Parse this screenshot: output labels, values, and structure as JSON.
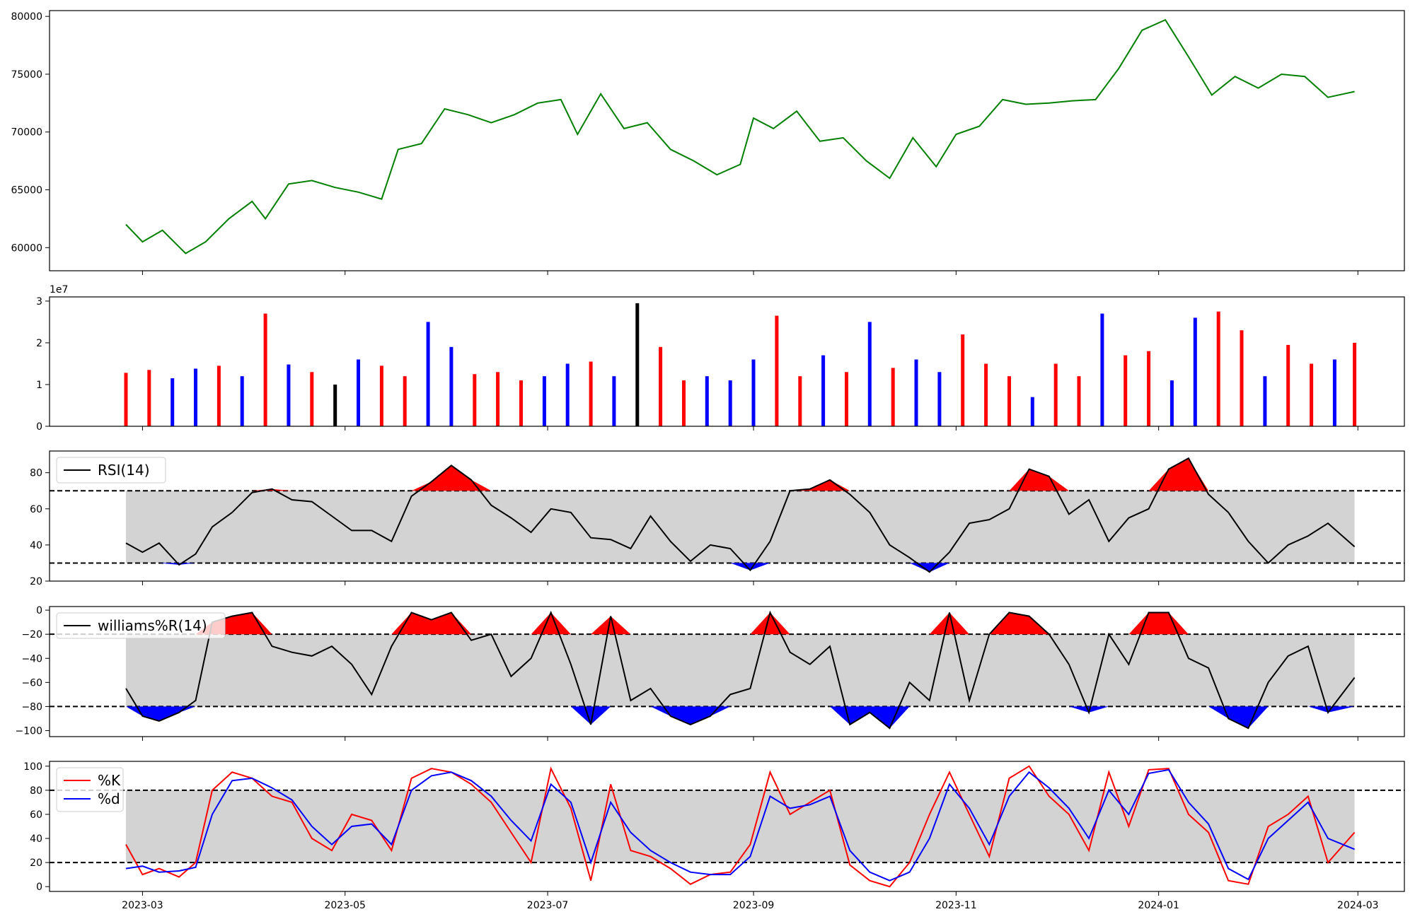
{
  "colors": {
    "price": "#008000",
    "volume_up": "#ff0000",
    "volume_down": "#0000ff",
    "volume_flat": "#000000",
    "band_fill": "#d3d3d3",
    "overbought_fill": "#ff0000",
    "oversold_fill": "#0000ff",
    "indicator_line": "#000000",
    "stoch_k": "#ff0000",
    "stoch_d": "#0000ff"
  },
  "x_axis": {
    "domain": [
      "2023-02-01",
      "2024-03-15"
    ],
    "ticks": [
      "2023-03-01",
      "2023-05-01",
      "2023-07-01",
      "2023-09-01",
      "2023-11-01",
      "2024-01-01",
      "2024-03-01"
    ],
    "tick_labels": [
      "2023-03",
      "2023-05",
      "2023-07",
      "2023-09",
      "2023-11",
      "2024-01",
      "2024-03"
    ]
  },
  "chart_data": [
    {
      "type": "line",
      "panel": "price",
      "ylim": [
        58000,
        80500
      ],
      "yticks": [
        60000,
        65000,
        70000,
        75000,
        80000
      ],
      "ytick_labels": [
        "60000",
        "65000",
        "70000",
        "75000",
        "80000"
      ],
      "x": [
        "2023-02-24",
        "2023-03-01",
        "2023-03-07",
        "2023-03-14",
        "2023-03-20",
        "2023-03-27",
        "2023-04-03",
        "2023-04-07",
        "2023-04-14",
        "2023-04-21",
        "2023-04-28",
        "2023-05-05",
        "2023-05-12",
        "2023-05-17",
        "2023-05-24",
        "2023-05-31",
        "2023-06-07",
        "2023-06-14",
        "2023-06-21",
        "2023-06-28",
        "2023-07-05",
        "2023-07-10",
        "2023-07-17",
        "2023-07-24",
        "2023-07-31",
        "2023-08-07",
        "2023-08-14",
        "2023-08-21",
        "2023-08-28",
        "2023-09-01",
        "2023-09-07",
        "2023-09-14",
        "2023-09-21",
        "2023-09-28",
        "2023-10-05",
        "2023-10-12",
        "2023-10-19",
        "2023-10-26",
        "2023-11-01",
        "2023-11-08",
        "2023-11-15",
        "2023-11-22",
        "2023-11-29",
        "2023-12-06",
        "2023-12-13",
        "2023-12-20",
        "2023-12-27",
        "2024-01-03",
        "2024-01-10",
        "2024-01-17",
        "2024-01-24",
        "2024-01-31",
        "2024-02-07",
        "2024-02-14",
        "2024-02-21",
        "2024-02-29"
      ],
      "values": [
        62000,
        60500,
        61500,
        59500,
        60500,
        62500,
        64000,
        62500,
        65500,
        65800,
        65200,
        64800,
        64200,
        68500,
        69000,
        72000,
        71500,
        70800,
        71500,
        72500,
        72800,
        69800,
        73300,
        70300,
        70800,
        68500,
        67500,
        66300,
        67200,
        71200,
        70300,
        71800,
        69200,
        69500,
        67500,
        66000,
        69500,
        67000,
        69800,
        70500,
        72800,
        72400,
        72500,
        72700,
        72800,
        75500,
        78800,
        79700,
        76500,
        73200,
        74800,
        73800,
        75000,
        74800,
        73000,
        73500
      ]
    },
    {
      "type": "bar",
      "panel": "volume",
      "scale_label": "1e7",
      "ylim": [
        0,
        3.1
      ],
      "yticks": [
        0,
        1,
        2,
        3
      ],
      "ytick_labels": [
        "0",
        "1",
        "2",
        "3"
      ],
      "x": [
        "2023-02-24",
        "2023-03-03",
        "2023-03-10",
        "2023-03-17",
        "2023-03-24",
        "2023-03-31",
        "2023-04-07",
        "2023-04-14",
        "2023-04-21",
        "2023-04-28",
        "2023-05-05",
        "2023-05-12",
        "2023-05-19",
        "2023-05-26",
        "2023-06-02",
        "2023-06-09",
        "2023-06-16",
        "2023-06-23",
        "2023-06-30",
        "2023-07-07",
        "2023-07-14",
        "2023-07-21",
        "2023-07-28",
        "2023-08-04",
        "2023-08-11",
        "2023-08-18",
        "2023-08-25",
        "2023-09-01",
        "2023-09-08",
        "2023-09-15",
        "2023-09-22",
        "2023-09-29",
        "2023-10-06",
        "2023-10-13",
        "2023-10-20",
        "2023-10-27",
        "2023-11-03",
        "2023-11-10",
        "2023-11-17",
        "2023-11-24",
        "2023-12-01",
        "2023-12-08",
        "2023-12-15",
        "2023-12-22",
        "2023-12-29",
        "2024-01-05",
        "2024-01-12",
        "2024-01-19",
        "2024-01-26",
        "2024-02-02",
        "2024-02-09",
        "2024-02-16",
        "2024-02-23",
        "2024-02-29"
      ],
      "values": [
        1.28,
        1.35,
        1.15,
        1.38,
        1.45,
        1.2,
        2.7,
        1.48,
        1.3,
        1.0,
        1.6,
        1.45,
        1.2,
        2.5,
        1.9,
        1.25,
        1.3,
        1.1,
        1.2,
        1.5,
        1.55,
        1.2,
        2.95,
        1.9,
        1.1,
        1.2,
        1.1,
        1.6,
        2.65,
        1.2,
        1.7,
        1.3,
        2.5,
        1.4,
        1.6,
        1.3,
        2.2,
        1.5,
        1.2,
        0.7,
        1.5,
        1.2,
        2.7,
        1.7,
        1.8,
        1.1,
        2.6,
        2.75,
        2.3,
        1.2,
        1.95,
        1.5,
        1.6,
        2.0
      ],
      "colors": [
        "up",
        "up",
        "down",
        "down",
        "up",
        "down",
        "up",
        "down",
        "up",
        "flat",
        "down",
        "up",
        "up",
        "down",
        "down",
        "up",
        "up",
        "up",
        "down",
        "down",
        "up",
        "down",
        "flat",
        "up",
        "up",
        "down",
        "down",
        "down",
        "up",
        "up",
        "down",
        "up",
        "down",
        "up",
        "down",
        "down",
        "up",
        "up",
        "up",
        "down",
        "up",
        "up",
        "down",
        "up",
        "up",
        "down",
        "down",
        "up",
        "up",
        "down",
        "up",
        "up",
        "down",
        "up"
      ]
    },
    {
      "type": "line",
      "panel": "rsi",
      "legend": [
        "RSI(14)"
      ],
      "ylim": [
        20,
        92
      ],
      "yticks": [
        20,
        40,
        60,
        80
      ],
      "ytick_labels": [
        "20",
        "40",
        "60",
        "80"
      ],
      "band": [
        30,
        70
      ],
      "x": [
        "2023-02-24",
        "2023-03-01",
        "2023-03-06",
        "2023-03-12",
        "2023-03-17",
        "2023-03-22",
        "2023-03-28",
        "2023-04-03",
        "2023-04-09",
        "2023-04-15",
        "2023-04-21",
        "2023-04-27",
        "2023-05-03",
        "2023-05-09",
        "2023-05-15",
        "2023-05-21",
        "2023-05-27",
        "2023-06-02",
        "2023-06-08",
        "2023-06-14",
        "2023-06-20",
        "2023-06-26",
        "2023-07-02",
        "2023-07-08",
        "2023-07-14",
        "2023-07-20",
        "2023-07-26",
        "2023-08-01",
        "2023-08-07",
        "2023-08-13",
        "2023-08-19",
        "2023-08-25",
        "2023-08-31",
        "2023-09-06",
        "2023-09-12",
        "2023-09-18",
        "2023-09-24",
        "2023-09-30",
        "2023-10-06",
        "2023-10-12",
        "2023-10-18",
        "2023-10-24",
        "2023-10-30",
        "2023-11-05",
        "2023-11-11",
        "2023-11-17",
        "2023-11-23",
        "2023-11-29",
        "2023-12-05",
        "2023-12-11",
        "2023-12-17",
        "2023-12-23",
        "2023-12-29",
        "2024-01-04",
        "2024-01-10",
        "2024-01-16",
        "2024-01-22",
        "2024-01-28",
        "2024-02-03",
        "2024-02-09",
        "2024-02-15",
        "2024-02-21",
        "2024-02-29"
      ],
      "values": [
        41,
        36,
        41,
        29,
        35,
        50,
        58,
        69,
        71,
        65,
        64,
        56,
        48,
        48,
        42,
        67,
        75,
        84,
        76,
        62,
        55,
        47,
        60,
        58,
        44,
        43,
        38,
        56,
        42,
        31,
        40,
        38,
        26,
        42,
        70,
        71,
        76,
        68,
        58,
        40,
        33,
        25,
        36,
        52,
        54,
        60,
        82,
        78,
        57,
        65,
        42,
        55,
        60,
        82,
        88,
        68,
        58,
        42,
        30,
        40,
        45,
        52,
        39
      ]
    },
    {
      "type": "line",
      "panel": "williams",
      "legend": [
        "williams%R(14)"
      ],
      "ylim": [
        -105,
        3
      ],
      "yticks": [
        -100,
        -80,
        -60,
        -40,
        -20,
        0
      ],
      "ytick_labels": [
        "−100",
        "−80",
        "−60",
        "−40",
        "−20",
        "0"
      ],
      "band": [
        -80,
        -20
      ],
      "x": [
        "2023-02-24",
        "2023-03-01",
        "2023-03-06",
        "2023-03-12",
        "2023-03-17",
        "2023-03-22",
        "2023-03-28",
        "2023-04-03",
        "2023-04-09",
        "2023-04-15",
        "2023-04-21",
        "2023-04-27",
        "2023-05-03",
        "2023-05-09",
        "2023-05-15",
        "2023-05-21",
        "2023-05-27",
        "2023-06-02",
        "2023-06-08",
        "2023-06-14",
        "2023-06-20",
        "2023-06-26",
        "2023-07-02",
        "2023-07-08",
        "2023-07-14",
        "2023-07-20",
        "2023-07-26",
        "2023-08-01",
        "2023-08-07",
        "2023-08-13",
        "2023-08-19",
        "2023-08-25",
        "2023-08-31",
        "2023-09-06",
        "2023-09-12",
        "2023-09-18",
        "2023-09-24",
        "2023-09-30",
        "2023-10-06",
        "2023-10-12",
        "2023-10-18",
        "2023-10-24",
        "2023-10-30",
        "2023-11-05",
        "2023-11-11",
        "2023-11-17",
        "2023-11-23",
        "2023-11-29",
        "2023-12-05",
        "2023-12-11",
        "2023-12-17",
        "2023-12-23",
        "2023-12-29",
        "2024-01-04",
        "2024-01-10",
        "2024-01-16",
        "2024-01-22",
        "2024-01-28",
        "2024-02-03",
        "2024-02-09",
        "2024-02-15",
        "2024-02-21",
        "2024-02-29"
      ],
      "values": [
        -65,
        -88,
        -92,
        -85,
        -75,
        -10,
        -5,
        -2,
        -30,
        -35,
        -38,
        -30,
        -45,
        -70,
        -30,
        -2,
        -8,
        -2,
        -25,
        -20,
        -55,
        -40,
        -2,
        -45,
        -95,
        -5,
        -75,
        -65,
        -88,
        -95,
        -88,
        -70,
        -65,
        -2,
        -35,
        -45,
        -30,
        -95,
        -85,
        -98,
        -60,
        -75,
        -2,
        -75,
        -20,
        -2,
        -5,
        -20,
        -45,
        -85,
        -20,
        -45,
        -2,
        -2,
        -40,
        -48,
        -90,
        -98,
        -60,
        -38,
        -30,
        -85,
        -56
      ]
    },
    {
      "type": "line",
      "panel": "stochastic",
      "legend": [
        "%K",
        "%d"
      ],
      "ylim": [
        -4,
        104
      ],
      "yticks": [
        0,
        20,
        40,
        60,
        80,
        100
      ],
      "ytick_labels": [
        "0",
        "20",
        "40",
        "60",
        "80",
        "100"
      ],
      "band": [
        20,
        80
      ],
      "x": [
        "2023-02-24",
        "2023-03-01",
        "2023-03-06",
        "2023-03-12",
        "2023-03-17",
        "2023-03-22",
        "2023-03-28",
        "2023-04-03",
        "2023-04-09",
        "2023-04-15",
        "2023-04-21",
        "2023-04-27",
        "2023-05-03",
        "2023-05-09",
        "2023-05-15",
        "2023-05-21",
        "2023-05-27",
        "2023-06-02",
        "2023-06-08",
        "2023-06-14",
        "2023-06-20",
        "2023-06-26",
        "2023-07-02",
        "2023-07-08",
        "2023-07-14",
        "2023-07-20",
        "2023-07-26",
        "2023-08-01",
        "2023-08-07",
        "2023-08-13",
        "2023-08-19",
        "2023-08-25",
        "2023-08-31",
        "2023-09-06",
        "2023-09-12",
        "2023-09-18",
        "2023-09-24",
        "2023-09-30",
        "2023-10-06",
        "2023-10-12",
        "2023-10-18",
        "2023-10-24",
        "2023-10-30",
        "2023-11-05",
        "2023-11-11",
        "2023-11-17",
        "2023-11-23",
        "2023-11-29",
        "2023-12-05",
        "2023-12-11",
        "2023-12-17",
        "2023-12-23",
        "2023-12-29",
        "2024-01-04",
        "2024-01-10",
        "2024-01-16",
        "2024-01-22",
        "2024-01-28",
        "2024-02-03",
        "2024-02-09",
        "2024-02-15",
        "2024-02-21",
        "2024-02-29"
      ],
      "series": [
        {
          "name": "%K",
          "values": [
            35,
            10,
            15,
            8,
            20,
            80,
            95,
            90,
            75,
            70,
            40,
            30,
            60,
            55,
            30,
            90,
            98,
            95,
            85,
            70,
            45,
            20,
            98,
            65,
            5,
            85,
            30,
            25,
            15,
            2,
            10,
            12,
            35,
            95,
            60,
            70,
            80,
            18,
            5,
            0,
            20,
            60,
            95,
            60,
            25,
            90,
            100,
            75,
            60,
            30,
            95,
            50,
            97,
            98,
            60,
            45,
            5,
            2,
            50,
            60,
            75,
            20,
            45
          ]
        },
        {
          "name": "%d",
          "values": [
            15,
            17,
            12,
            13,
            16,
            60,
            88,
            90,
            82,
            72,
            50,
            35,
            50,
            52,
            35,
            80,
            92,
            95,
            88,
            75,
            55,
            38,
            85,
            70,
            20,
            70,
            45,
            30,
            20,
            12,
            10,
            10,
            25,
            75,
            65,
            68,
            75,
            30,
            12,
            5,
            12,
            40,
            85,
            65,
            35,
            75,
            95,
            82,
            65,
            40,
            80,
            60,
            94,
            97,
            70,
            52,
            15,
            6,
            40,
            55,
            70,
            40,
            31
          ]
        }
      ]
    }
  ]
}
